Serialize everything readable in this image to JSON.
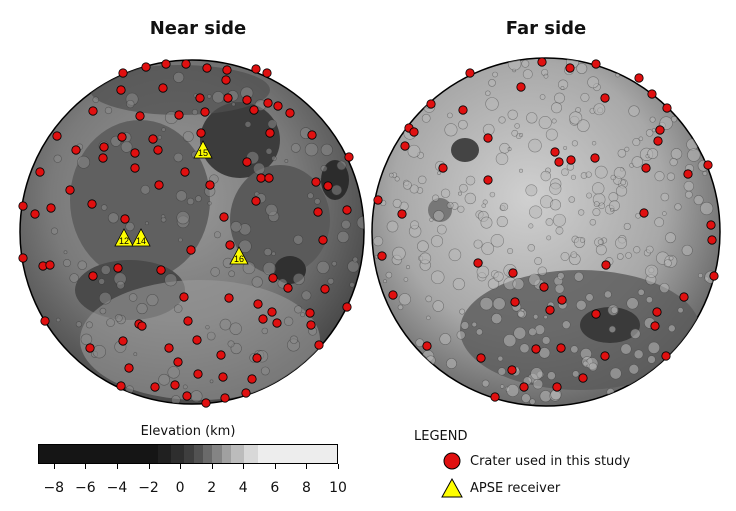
{
  "titles": {
    "near": "Near side",
    "far": "Far side"
  },
  "colorbar": {
    "title": "Elevation (km)",
    "ticks": [
      "−8",
      "−6",
      "−4",
      "−2",
      "0",
      "2",
      "4",
      "6",
      "8",
      "10"
    ],
    "range_km": [
      -9,
      10
    ]
  },
  "legend": {
    "title": "LEGEND",
    "items": [
      {
        "label": "Crater used in this study",
        "symbol": "red-circle",
        "color": "#e01010"
      },
      {
        "label": "APSE receiver",
        "symbol": "yellow-triangle",
        "color": "#ffff00"
      }
    ]
  },
  "stations": [
    {
      "label": "12"
    },
    {
      "label": "14"
    },
    {
      "label": "15"
    },
    {
      "label": "16"
    }
  ],
  "colors": {
    "crater": "#e01010",
    "apse": "#ffff00"
  }
}
